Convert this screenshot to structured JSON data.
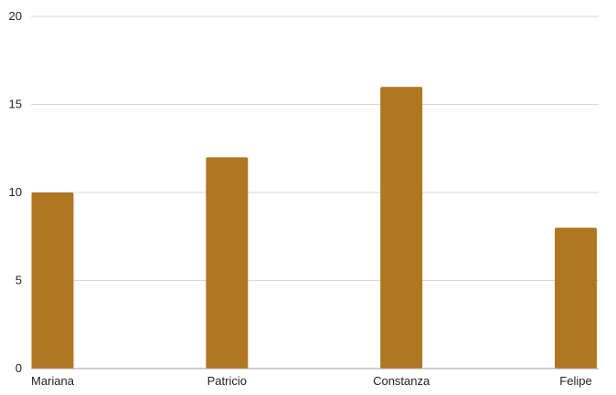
{
  "chart_data": {
    "type": "bar",
    "categories": [
      "Mariana",
      "Patricio",
      "Constanza",
      "Felipe"
    ],
    "values": [
      10,
      12,
      16,
      8
    ],
    "title": "",
    "xlabel": "",
    "ylabel": "",
    "ylim": [
      0,
      20
    ],
    "yticks": [
      "0",
      "5",
      "10",
      "15",
      "20"
    ],
    "grid": true,
    "legend": "none",
    "bar_color": "#b07722"
  }
}
